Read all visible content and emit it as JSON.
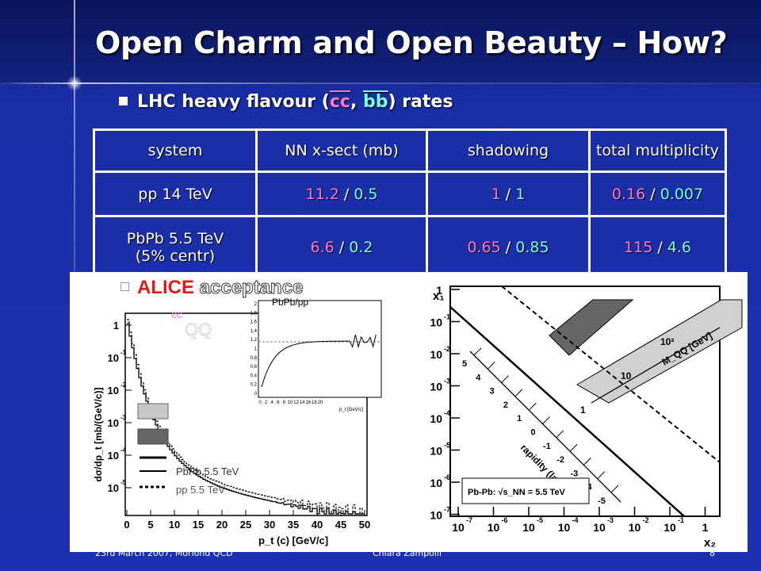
{
  "slide": {
    "title": "Open Charm and Open Beauty – How?",
    "bullet1": {
      "prefix": "LHC heavy flavour (",
      "cc": "cc",
      "sep": ", ",
      "bb": "bb",
      "suffix": ") rates"
    },
    "bullet2": {
      "alice": "ALICE",
      "text": " acceptance"
    },
    "footer": {
      "date": "23rd March 2007, Moriond QCD",
      "author": "Chiara Zampolli",
      "page": "8"
    }
  },
  "table": {
    "headers": [
      "system",
      "NN x-sect (mb)",
      "shadowing",
      "total multiplicity"
    ],
    "rows": [
      {
        "system": "pp 14 TeV",
        "xsect_c": "11.2",
        "xsect_b": "0.5",
        "shadow_c": "1",
        "shadow_b": "1",
        "mult_c": "0.16",
        "mult_b": "0.007"
      },
      {
        "system": "PbPb 5.5 TeV",
        "system2": "(5% centr)",
        "xsect_c": "6.6",
        "xsect_b": "0.2",
        "shadow_c": "0.65",
        "shadow_b": "0.85",
        "mult_c": "115",
        "mult_b": "4.6"
      }
    ],
    "slash": " / "
  },
  "left_plot": {
    "ylabel": "dσ/dp_t [mb/(GeV/c)]",
    "xlabel": "p_t (c) [GeV/c]",
    "yticks": [
      "1",
      "10",
      "10",
      "10",
      "10",
      "10"
    ],
    "ytick_exp": [
      "",
      "-1",
      "-2",
      "-3",
      "-4",
      "-5"
    ],
    "xticks": [
      "0",
      "5",
      "10",
      "15",
      "20",
      "25",
      "30",
      "35",
      "40",
      "45",
      "50"
    ],
    "label_cc": "cc",
    "label_qq": "QQ",
    "legend_pbpb": "PbPb 5.5 TeV",
    "legend_pp": "pp 5.5 TeV",
    "inset_title": "PbPb/pp",
    "inset_yticks": [
      "2",
      "1.8",
      "1.6",
      "1.4",
      "1.2",
      "1",
      "0.8",
      "0.6",
      "0.4",
      "0.2",
      "0"
    ],
    "inset_xticks": [
      "0",
      "2",
      "4",
      "6",
      "8",
      "10",
      "12",
      "14",
      "16",
      "18",
      "20"
    ],
    "inset_xlabel": "p_t [GeV/c]"
  },
  "right_plot": {
    "x1_label": "x₁",
    "x2_label": "x₂",
    "yticks": [
      "1",
      "10",
      "10",
      "10",
      "10",
      "10",
      "10",
      "10"
    ],
    "ytick_exp": [
      "",
      "-1",
      "-2",
      "-3",
      "-4",
      "-5",
      "-6",
      "-7"
    ],
    "xticks": [
      "10",
      "10",
      "10",
      "10",
      "10",
      "10",
      "10",
      "1"
    ],
    "xtick_exp": [
      "-7",
      "-6",
      "-5",
      "-4",
      "-3",
      "-2",
      "-1",
      ""
    ],
    "rapidity_label": "rapidity (lab)",
    "rapidity_ticks": [
      "5",
      "4",
      "3",
      "2",
      "1",
      "0",
      "-1",
      "-2",
      "-3",
      "-4",
      "-5"
    ],
    "mass_label": "M_QQ [GeV]",
    "mass_ticks": [
      "10²",
      "10",
      "1"
    ],
    "box_label": "Pb-Pb:  √s_NN = 5.5 TeV"
  },
  "colors": {
    "charm": "#ff77c8",
    "beauty": "#77ffe0",
    "alice": "#e01a1a"
  }
}
